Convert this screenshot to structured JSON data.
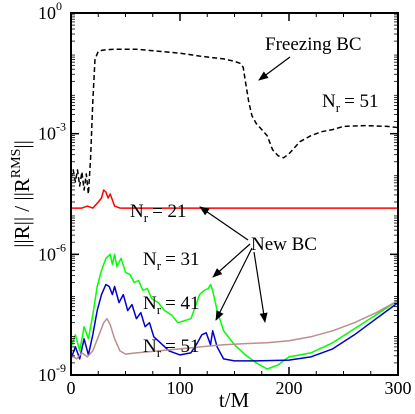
{
  "chart_data": {
    "type": "line",
    "xlabel": "t/M",
    "ylabel": "||R|| / ||R^RMS||",
    "ylabel_parts": {
      "a": "||R|| / ||R",
      "sup": "RMS",
      "b": "||"
    },
    "xlim": [
      0,
      300
    ],
    "ylim_log10": [
      -9,
      0
    ],
    "log_y": true,
    "x_ticks": [
      0,
      100,
      200,
      300
    ],
    "x_tick_labels": [
      "0",
      "100",
      "200",
      "300"
    ],
    "y_ticks_log10": [
      -9,
      -6,
      -3,
      0
    ],
    "y_tick_labels": [
      {
        "base": "10",
        "exp": "-9"
      },
      {
        "base": "10",
        "exp": "-6"
      },
      {
        "base": "10",
        "exp": "-3"
      },
      {
        "base": "10",
        "exp": "0"
      }
    ],
    "series": [
      {
        "label": "Nr = 51 (Freezing BC)",
        "color": "#000000",
        "dash": true,
        "points": [
          [
            0,
            -4.1
          ],
          [
            2,
            -3.9
          ],
          [
            4,
            -4.2
          ],
          [
            6,
            -3.9
          ],
          [
            8,
            -4.3
          ],
          [
            10,
            -3.95
          ],
          [
            12,
            -4.4
          ],
          [
            14,
            -4.0
          ],
          [
            16,
            -4.5
          ],
          [
            18,
            -3.6
          ],
          [
            20,
            -2.2
          ],
          [
            22,
            -1.15
          ],
          [
            25,
            -0.95
          ],
          [
            30,
            -0.92
          ],
          [
            40,
            -0.9
          ],
          [
            60,
            -0.9
          ],
          [
            80,
            -0.95
          ],
          [
            100,
            -1.0
          ],
          [
            120,
            -1.08
          ],
          [
            140,
            -1.14
          ],
          [
            150,
            -1.2
          ],
          [
            155,
            -1.25
          ],
          [
            158,
            -1.35
          ],
          [
            160,
            -1.7
          ],
          [
            163,
            -2.2
          ],
          [
            166,
            -2.55
          ],
          [
            170,
            -2.75
          ],
          [
            175,
            -2.9
          ],
          [
            180,
            -3.05
          ],
          [
            185,
            -3.4
          ],
          [
            190,
            -3.55
          ],
          [
            195,
            -3.6
          ],
          [
            200,
            -3.5
          ],
          [
            210,
            -3.2
          ],
          [
            220,
            -3.05
          ],
          [
            230,
            -2.95
          ],
          [
            240,
            -2.9
          ],
          [
            250,
            -2.82
          ],
          [
            270,
            -2.8
          ],
          [
            290,
            -2.82
          ],
          [
            300,
            -2.85
          ]
        ]
      },
      {
        "label": "Nr = 21",
        "color": "#ff0000",
        "dash": false,
        "points": [
          [
            0,
            -4.85
          ],
          [
            10,
            -4.85
          ],
          [
            15,
            -4.8
          ],
          [
            20,
            -4.85
          ],
          [
            25,
            -4.7
          ],
          [
            28,
            -4.6
          ],
          [
            30,
            -4.4
          ],
          [
            32,
            -4.45
          ],
          [
            34,
            -4.6
          ],
          [
            36,
            -4.5
          ],
          [
            38,
            -4.65
          ],
          [
            40,
            -4.8
          ],
          [
            45,
            -4.85
          ],
          [
            60,
            -4.85
          ],
          [
            300,
            -4.85
          ]
        ]
      },
      {
        "label": "Nr = 31",
        "color": "#00ff00",
        "dash": false,
        "points": [
          [
            0,
            -8.3
          ],
          [
            4,
            -8.0
          ],
          [
            8,
            -8.4
          ],
          [
            12,
            -7.8
          ],
          [
            16,
            -8.1
          ],
          [
            20,
            -7.5
          ],
          [
            24,
            -6.8
          ],
          [
            28,
            -6.4
          ],
          [
            32,
            -6.1
          ],
          [
            36,
            -6.0
          ],
          [
            38,
            -6.25
          ],
          [
            40,
            -6.0
          ],
          [
            42,
            -6.3
          ],
          [
            46,
            -6.1
          ],
          [
            50,
            -6.45
          ],
          [
            54,
            -6.5
          ],
          [
            58,
            -6.7
          ],
          [
            62,
            -6.65
          ],
          [
            66,
            -6.9
          ],
          [
            70,
            -6.85
          ],
          [
            74,
            -7.1
          ],
          [
            80,
            -7.2
          ],
          [
            86,
            -7.4
          ],
          [
            92,
            -7.5
          ],
          [
            98,
            -7.7
          ],
          [
            104,
            -7.65
          ],
          [
            110,
            -7.6
          ],
          [
            114,
            -7.3
          ],
          [
            118,
            -7.0
          ],
          [
            122,
            -6.9
          ],
          [
            126,
            -6.85
          ],
          [
            128,
            -6.75
          ],
          [
            130,
            -6.9
          ],
          [
            134,
            -7.4
          ],
          [
            140,
            -7.9
          ],
          [
            150,
            -8.25
          ],
          [
            160,
            -8.5
          ],
          [
            170,
            -8.7
          ],
          [
            180,
            -8.85
          ],
          [
            190,
            -8.75
          ],
          [
            200,
            -8.55
          ],
          [
            220,
            -8.45
          ],
          [
            240,
            -8.2
          ],
          [
            260,
            -7.85
          ],
          [
            280,
            -7.5
          ],
          [
            300,
            -7.15
          ]
        ]
      },
      {
        "label": "Nr = 41",
        "color": "#0000cd",
        "dash": false,
        "points": [
          [
            0,
            -8.6
          ],
          [
            4,
            -8.3
          ],
          [
            8,
            -8.6
          ],
          [
            12,
            -8.1
          ],
          [
            16,
            -8.5
          ],
          [
            20,
            -8.0
          ],
          [
            24,
            -7.4
          ],
          [
            28,
            -7.0
          ],
          [
            32,
            -6.75
          ],
          [
            35,
            -6.8
          ],
          [
            38,
            -7.0
          ],
          [
            40,
            -6.8
          ],
          [
            44,
            -7.2
          ],
          [
            48,
            -7.0
          ],
          [
            52,
            -7.4
          ],
          [
            56,
            -7.25
          ],
          [
            60,
            -7.6
          ],
          [
            64,
            -7.45
          ],
          [
            68,
            -7.8
          ],
          [
            72,
            -7.7
          ],
          [
            76,
            -8.05
          ],
          [
            82,
            -8.2
          ],
          [
            90,
            -8.4
          ],
          [
            100,
            -8.5
          ],
          [
            110,
            -8.45
          ],
          [
            116,
            -8.2
          ],
          [
            120,
            -8.0
          ],
          [
            124,
            -7.95
          ],
          [
            128,
            -8.25
          ],
          [
            130,
            -7.9
          ],
          [
            134,
            -8.3
          ],
          [
            140,
            -8.6
          ],
          [
            150,
            -8.65
          ],
          [
            170,
            -8.65
          ],
          [
            200,
            -8.63
          ],
          [
            220,
            -8.55
          ],
          [
            240,
            -8.35
          ],
          [
            260,
            -8.0
          ],
          [
            280,
            -7.6
          ],
          [
            300,
            -7.2
          ]
        ]
      },
      {
        "label": "Nr = 51",
        "color": "#bc8f8f",
        "dash": false,
        "points": [
          [
            0,
            -8.5
          ],
          [
            5,
            -8.6
          ],
          [
            10,
            -8.45
          ],
          [
            15,
            -8.55
          ],
          [
            20,
            -8.4
          ],
          [
            25,
            -8.05
          ],
          [
            30,
            -7.7
          ],
          [
            33,
            -7.6
          ],
          [
            36,
            -7.75
          ],
          [
            40,
            -8.1
          ],
          [
            45,
            -8.4
          ],
          [
            50,
            -8.48
          ],
          [
            60,
            -8.45
          ],
          [
            80,
            -8.4
          ],
          [
            100,
            -8.35
          ],
          [
            120,
            -8.3
          ],
          [
            140,
            -8.25
          ],
          [
            160,
            -8.22
          ],
          [
            180,
            -8.2
          ],
          [
            200,
            -8.15
          ],
          [
            220,
            -8.05
          ],
          [
            240,
            -7.9
          ],
          [
            260,
            -7.7
          ],
          [
            280,
            -7.45
          ],
          [
            300,
            -7.15
          ]
        ]
      }
    ],
    "annotations": {
      "freezing": "Freezing BC",
      "nr51_top": "= 51",
      "nr21": "= 21",
      "newbc": "New BC",
      "nr31": "= 31",
      "nr41": "= 41",
      "nr51_bottom": "= 51",
      "n_prefix": "N",
      "n_sub": "r"
    }
  }
}
